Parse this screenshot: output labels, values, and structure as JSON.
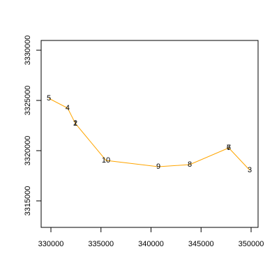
{
  "chart_data": {
    "type": "line",
    "color": "#FFA500",
    "x": [
      329791,
      331672,
      332439,
      332439,
      335505,
      340732,
      343868,
      347770,
      347770,
      349861
    ],
    "values": [
      3325208,
      3324236,
      3322708,
      3322708,
      3319028,
      3318403,
      3318611,
      3320278,
      3320278,
      3318056
    ],
    "point_labels": [
      "5",
      "4",
      "2",
      "1",
      "10",
      "9",
      "8",
      "7",
      "6",
      "3"
    ],
    "xlim": [
      329024,
      350697
    ],
    "ylim": [
      3312361,
      3330972
    ],
    "xticks": [
      330000,
      335000,
      340000,
      345000,
      350000
    ],
    "yticks": [
      3315000,
      3320000,
      3325000,
      3330000
    ]
  }
}
